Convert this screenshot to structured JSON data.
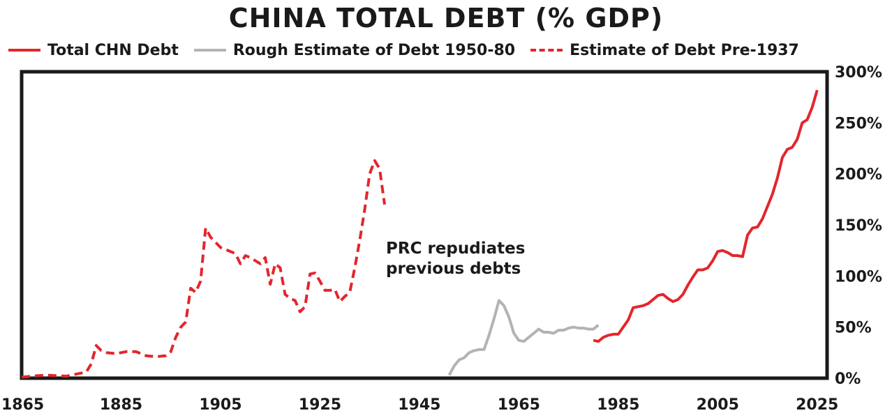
{
  "chart_data": {
    "type": "line",
    "title": "CHINA TOTAL DEBT (% GDP)",
    "xlabel": "",
    "ylabel": "",
    "xlim": [
      1865,
      2027
    ],
    "ylim": [
      0,
      300
    ],
    "x_ticks": [
      "1865",
      "1885",
      "1905",
      "1925",
      "1945",
      "1965",
      "1985",
      "2005",
      "2025"
    ],
    "y_ticks": [
      "0%",
      "50%",
      "100%",
      "150%",
      "200%",
      "250%",
      "300%"
    ],
    "grid": false,
    "legend_position": "top",
    "series": [
      {
        "name": "Total CHN Debt",
        "style": "solid",
        "color": "#e3262c",
        "x": [
          1980,
          1981,
          1982,
          1983,
          1984,
          1985,
          1986,
          1987,
          1988,
          1989,
          1990,
          1991,
          1992,
          1993,
          1994,
          1995,
          1996,
          1997,
          1998,
          1999,
          2000,
          2001,
          2002,
          2003,
          2004,
          2005,
          2006,
          2007,
          2008,
          2009,
          2010,
          2011,
          2012,
          2013,
          2014,
          2015,
          2016,
          2017,
          2018,
          2019,
          2020,
          2021,
          2022,
          2023,
          2024,
          2025
        ],
        "values": [
          37,
          36,
          40,
          42,
          43,
          43,
          50,
          57,
          69,
          70,
          71,
          73,
          77,
          81,
          82,
          78,
          75,
          77,
          82,
          91,
          99,
          106,
          106,
          108,
          115,
          124,
          125,
          123,
          120,
          120,
          119,
          140,
          147,
          148,
          156,
          168,
          180,
          196,
          216,
          224,
          226,
          234,
          250,
          253,
          265,
          282
        ]
      },
      {
        "name": "Rough Estimate of Debt 1950-80",
        "style": "solid",
        "color": "#b3b3b3",
        "x": [
          1951,
          1952,
          1953,
          1954,
          1955,
          1956,
          1957,
          1958,
          1959,
          1960,
          1961,
          1962,
          1963,
          1964,
          1965,
          1966,
          1967,
          1968,
          1969,
          1970,
          1971,
          1972,
          1973,
          1974,
          1975,
          1976,
          1977,
          1978,
          1979,
          1980,
          1981
        ],
        "values": [
          3,
          12,
          18,
          20,
          25,
          27,
          28,
          28,
          42,
          58,
          76,
          71,
          60,
          44,
          37,
          36,
          40,
          44,
          48,
          45,
          45,
          44,
          47,
          47,
          49,
          50,
          49,
          49,
          48,
          48,
          52
        ]
      },
      {
        "name": "Estimate of Debt Pre-1937",
        "style": "dashed",
        "color": "#e3262c",
        "x": [
          1865,
          1867,
          1870,
          1874,
          1876,
          1878,
          1879,
          1880,
          1881,
          1882,
          1884,
          1886,
          1888,
          1890,
          1892,
          1894,
          1895,
          1896,
          1897,
          1898,
          1899,
          1900,
          1901,
          1902,
          1903,
          1904,
          1905,
          1906,
          1908,
          1909,
          1910,
          1911,
          1912,
          1913,
          1914,
          1915,
          1916,
          1917,
          1918,
          1919,
          1920,
          1921,
          1922,
          1923,
          1924,
          1925,
          1926,
          1927,
          1928,
          1929,
          1930,
          1931,
          1932,
          1933,
          1934,
          1935,
          1936,
          1937,
          1938
        ],
        "values": [
          1,
          2,
          3,
          2,
          4,
          6,
          14,
          32,
          27,
          25,
          24,
          26,
          26,
          22,
          21,
          22,
          26,
          40,
          50,
          55,
          88,
          84,
          95,
          147,
          138,
          133,
          128,
          126,
          122,
          112,
          120,
          118,
          115,
          112,
          118,
          92,
          112,
          108,
          82,
          78,
          76,
          65,
          70,
          102,
          103,
          95,
          86,
          86,
          87,
          75,
          80,
          84,
          108,
          135,
          165,
          200,
          213,
          205,
          170
        ]
      }
    ],
    "annotations": [
      "PRC repudiates",
      "previous debts"
    ]
  }
}
